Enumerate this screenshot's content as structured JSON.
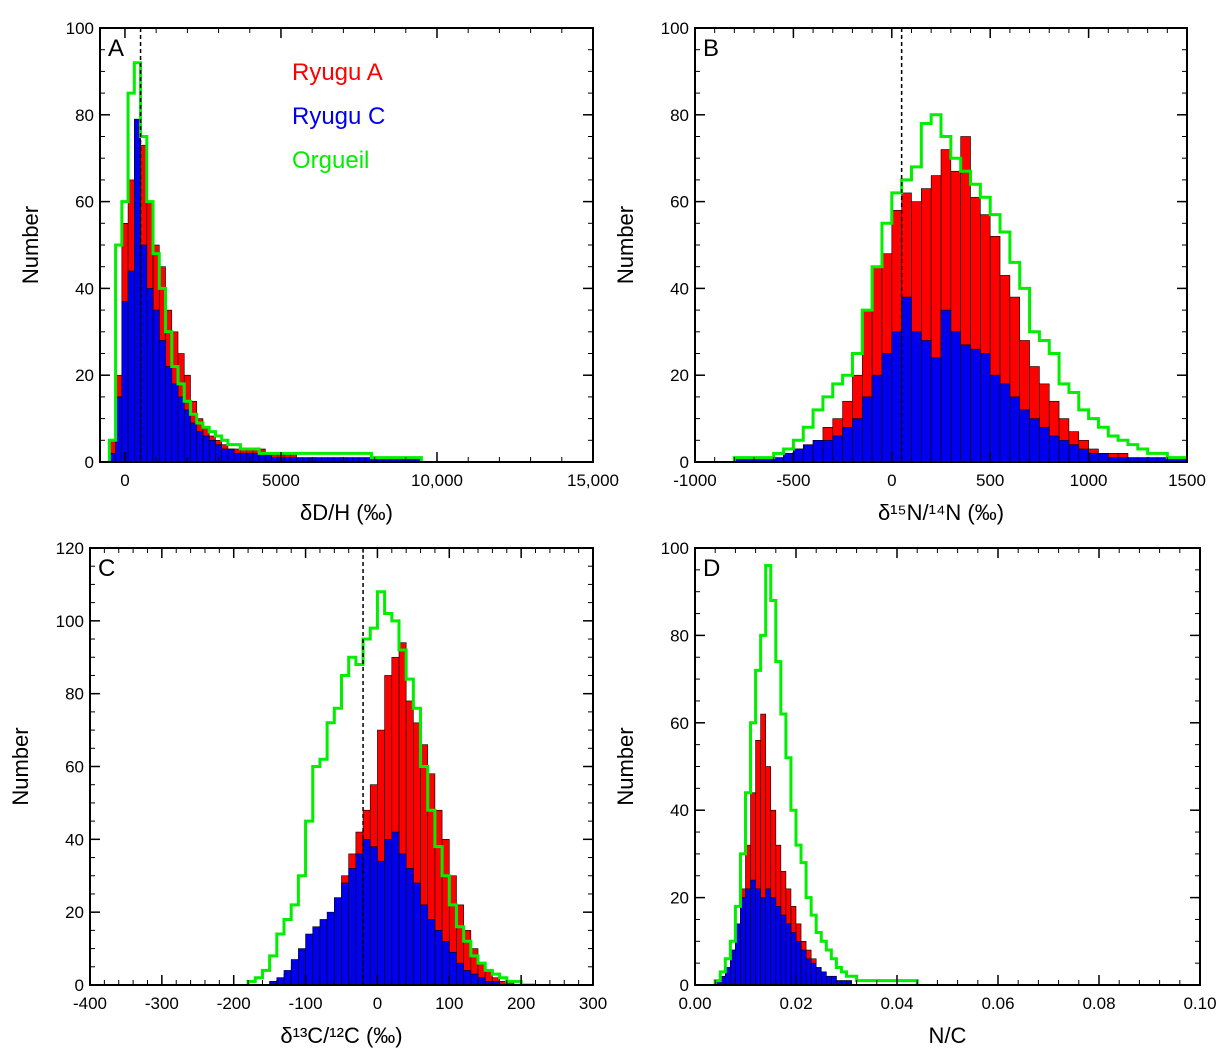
{
  "colors": {
    "ryugu_a": "#ff0000",
    "ryugu_c": "#0000ee",
    "orgueil": "#00ee00",
    "axis": "#000000"
  },
  "chart_data": [
    {
      "type": "bar",
      "panel_label": "A",
      "xlabel": "δD/H (‰)",
      "ylabel": "Number",
      "xlim": [
        -800,
        15000
      ],
      "ylim": [
        0,
        100
      ],
      "xticks": [
        0,
        5000,
        10000,
        15000
      ],
      "xtick_labels": [
        "0",
        "5000",
        "10,000",
        "15,000"
      ],
      "yticks": [
        0,
        20,
        40,
        60,
        80,
        100
      ],
      "ref_line_x": 500,
      "legend": [
        "Ryugu A",
        "Ryugu C",
        "Orgueil"
      ],
      "bin_start": -500,
      "bin_width": 200,
      "series": [
        {
          "name": "Ryugu A",
          "values": [
            5,
            20,
            55,
            65,
            75,
            73,
            60,
            50,
            45,
            35,
            30,
            25,
            20,
            14,
            10,
            8,
            6,
            5,
            4,
            3,
            3,
            3,
            3,
            3,
            3,
            2,
            2,
            2,
            2,
            2,
            1,
            1,
            1,
            1,
            1,
            1,
            1,
            1,
            1,
            1,
            1,
            1,
            1,
            1,
            1,
            1,
            1,
            1,
            1,
            1
          ]
        },
        {
          "name": "Ryugu C",
          "values": [
            2,
            15,
            37,
            44,
            79,
            50,
            40,
            35,
            28,
            22,
            18,
            15,
            12,
            9,
            7,
            6,
            5,
            4,
            3,
            3,
            2,
            2,
            2,
            2,
            2,
            2,
            1,
            1,
            1,
            1,
            1,
            1,
            1,
            1,
            1,
            1,
            1,
            1,
            1,
            1,
            1,
            1,
            1,
            1,
            1,
            1,
            1,
            1,
            1,
            1
          ]
        },
        {
          "name": "Orgueil",
          "values": [
            5,
            50,
            60,
            85,
            92,
            75,
            60,
            48,
            40,
            30,
            22,
            18,
            14,
            11,
            9,
            8,
            7,
            6,
            5,
            4,
            4,
            3,
            3,
            3,
            2,
            2,
            2,
            2,
            2,
            2,
            2,
            2,
            2,
            2,
            2,
            2,
            2,
            2,
            2,
            2,
            2,
            2,
            1,
            1,
            1,
            1,
            1,
            1,
            1,
            1
          ]
        }
      ]
    },
    {
      "type": "bar",
      "panel_label": "B",
      "xlabel": "δ¹⁵N/¹⁴N (‰)",
      "ylabel": "Number",
      "xlim": [
        -1000,
        1500
      ],
      "ylim": [
        0,
        100
      ],
      "xticks": [
        -1000,
        -500,
        0,
        500,
        1000,
        1500
      ],
      "xtick_labels": [
        "-1000",
        "-500",
        "0",
        "500",
        "1000",
        "1500"
      ],
      "yticks": [
        0,
        20,
        40,
        60,
        80,
        100
      ],
      "ref_line_x": 50,
      "bin_start": -800,
      "bin_width": 50,
      "series": [
        {
          "name": "Ryugu A",
          "values": [
            1,
            1,
            1,
            1,
            1,
            2,
            3,
            3,
            5,
            8,
            10,
            14,
            20,
            35,
            45,
            48,
            58,
            62,
            60,
            63,
            66,
            72,
            67,
            75,
            61,
            57,
            52,
            43,
            38,
            28,
            22,
            18,
            14,
            10,
            7,
            5,
            3,
            2,
            2,
            2,
            1,
            1,
            1,
            1,
            1,
            1,
            1,
            1,
            1,
            1
          ]
        },
        {
          "name": "Ryugu C",
          "values": [
            1,
            1,
            1,
            1,
            1,
            2,
            3,
            4,
            5,
            5,
            6,
            8,
            10,
            15,
            20,
            25,
            30,
            38,
            30,
            28,
            24,
            35,
            30,
            27,
            26,
            25,
            20,
            18,
            15,
            12,
            10,
            8,
            6,
            5,
            4,
            3,
            2,
            2,
            1,
            1,
            1,
            1,
            1,
            1,
            1,
            1,
            1,
            1,
            1,
            1
          ]
        },
        {
          "name": "Orgueil",
          "values": [
            1,
            1,
            1,
            1,
            2,
            3,
            5,
            8,
            12,
            15,
            18,
            20,
            25,
            35,
            45,
            55,
            62,
            65,
            68,
            78,
            80,
            75,
            70,
            67,
            64,
            61,
            57,
            53,
            46,
            40,
            30,
            28,
            25,
            18,
            16,
            12,
            10,
            8,
            6,
            5,
            4,
            3,
            2,
            2,
            1,
            1,
            1,
            1,
            1,
            1
          ]
        }
      ]
    },
    {
      "type": "bar",
      "panel_label": "C",
      "xlabel": "δ¹³C/¹²C (‰)",
      "ylabel": "Number",
      "xlim": [
        -400,
        300
      ],
      "ylim": [
        0,
        120
      ],
      "xticks": [
        -400,
        -300,
        -200,
        -100,
        0,
        100,
        200,
        300
      ],
      "xtick_labels": [
        "-400",
        "-300",
        "-200",
        "-100",
        "0",
        "100",
        "200",
        "300"
      ],
      "yticks": [
        0,
        20,
        40,
        60,
        80,
        100,
        120
      ],
      "ref_line_x": -20,
      "bin_start": -180,
      "bin_width": 10,
      "series": [
        {
          "name": "Ryugu A",
          "values": [
            0,
            0,
            0,
            1,
            2,
            3,
            5,
            8,
            10,
            14,
            16,
            18,
            22,
            30,
            36,
            42,
            48,
            55,
            70,
            85,
            90,
            94,
            78,
            72,
            66,
            58,
            48,
            40,
            30,
            22,
            15,
            10,
            6,
            4,
            2,
            1,
            1,
            0,
            0,
            0
          ]
        },
        {
          "name": "Ryugu C",
          "values": [
            0,
            0,
            0,
            1,
            2,
            4,
            7,
            10,
            14,
            16,
            18,
            20,
            24,
            28,
            32,
            36,
            40,
            38,
            34,
            40,
            42,
            36,
            32,
            28,
            22,
            18,
            15,
            12,
            9,
            6,
            4,
            3,
            2,
            1,
            1,
            0,
            0,
            0,
            0,
            0
          ]
        },
        {
          "name": "Orgueil",
          "values": [
            1,
            2,
            4,
            8,
            14,
            18,
            22,
            30,
            45,
            60,
            62,
            72,
            76,
            85,
            90,
            88,
            95,
            98,
            108,
            102,
            100,
            92,
            84,
            76,
            60,
            48,
            38,
            30,
            22,
            16,
            12,
            8,
            6,
            4,
            3,
            2,
            1,
            1,
            0,
            0
          ]
        }
      ]
    },
    {
      "type": "bar",
      "panel_label": "D",
      "xlabel": "N/C",
      "ylabel": "Number",
      "xlim": [
        0,
        0.1
      ],
      "ylim": [
        0,
        100
      ],
      "xticks": [
        0,
        0.02,
        0.04,
        0.06,
        0.08,
        0.1
      ],
      "xtick_labels": [
        "0.00",
        "0.02",
        "0.04",
        "0.06",
        "0.08",
        "0.10"
      ],
      "yticks": [
        0,
        20,
        40,
        60,
        80,
        100
      ],
      "bin_start": 0.004,
      "bin_width": 0.001,
      "series": [
        {
          "name": "Ryugu A",
          "values": [
            1,
            2,
            4,
            8,
            14,
            22,
            32,
            44,
            56,
            62,
            50,
            40,
            32,
            26,
            22,
            18,
            14,
            10,
            8,
            6,
            4,
            3,
            2,
            2,
            1,
            1,
            1,
            0,
            0,
            0,
            0,
            0,
            0,
            0,
            0,
            0,
            0,
            0,
            0,
            0
          ]
        },
        {
          "name": "Ryugu C",
          "values": [
            1,
            2,
            4,
            8,
            14,
            20,
            22,
            24,
            22,
            20,
            22,
            20,
            18,
            16,
            14,
            12,
            10,
            8,
            6,
            5,
            4,
            3,
            2,
            2,
            1,
            1,
            1,
            0,
            0,
            0,
            0,
            0,
            0,
            0,
            0,
            0,
            0,
            0,
            0,
            0
          ]
        },
        {
          "name": "Orgueil",
          "values": [
            1,
            3,
            6,
            10,
            18,
            30,
            44,
            60,
            72,
            80,
            96,
            88,
            74,
            62,
            52,
            40,
            32,
            28,
            20,
            16,
            12,
            10,
            8,
            6,
            4,
            3,
            2,
            2,
            1,
            1,
            1,
            1,
            1,
            1,
            1,
            1,
            1,
            1,
            1,
            1
          ]
        }
      ]
    }
  ]
}
